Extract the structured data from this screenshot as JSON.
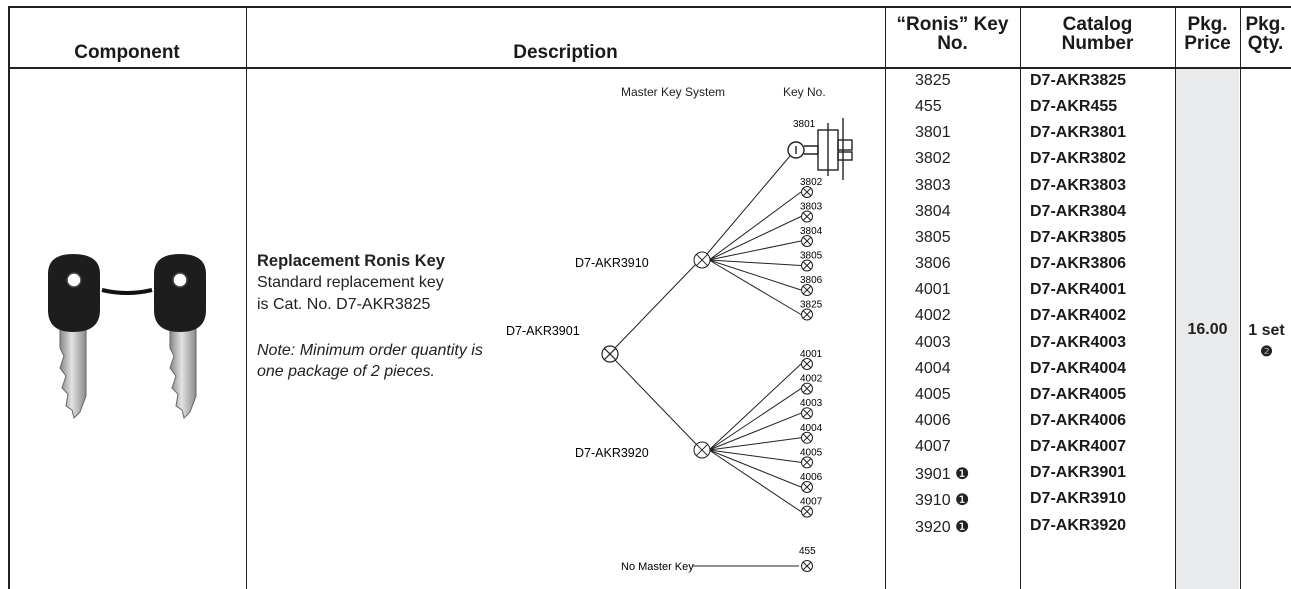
{
  "headers": {
    "component": "Component",
    "description": "Description",
    "ronis_key_line1": "“Ronis” Key",
    "ronis_key_line2": "No.",
    "catalog_line1": "Catalog",
    "catalog_line2": "Number",
    "price_line1": "Pkg.",
    "price_line2": "Price",
    "qty_line1": "Pkg.",
    "qty_line2": "Qty."
  },
  "description": {
    "title": "Replacement Ronis Key",
    "line1": "Standard replacement key",
    "line2": "is Cat. No. D7-AKR3825",
    "note": "Note: Minimum order quantity is one package of 2 pieces."
  },
  "diagram": {
    "header_system": "Master Key System",
    "header_keyno": "Key No.",
    "grand_master": "D7-AKR3901",
    "master_a": "D7-AKR3910",
    "master_b": "D7-AKR3920",
    "lock_key": "3801",
    "group_a_keys": [
      "3802",
      "3803",
      "3804",
      "3805",
      "3806",
      "3825"
    ],
    "group_b_keys": [
      "4001",
      "4002",
      "4003",
      "4004",
      "4005",
      "4006",
      "4007"
    ],
    "no_master_label": "No Master Key",
    "no_master_key": "455"
  },
  "rows": [
    {
      "key": "3825",
      "catalog": "D7-AKR3825"
    },
    {
      "key": "455",
      "catalog": "D7-AKR455"
    },
    {
      "key": "3801",
      "catalog": "D7-AKR3801"
    },
    {
      "key": "3802",
      "catalog": "D7-AKR3802"
    },
    {
      "key": "3803",
      "catalog": "D7-AKR3803"
    },
    {
      "key": "3804",
      "catalog": "D7-AKR3804"
    },
    {
      "key": "3805",
      "catalog": "D7-AKR3805"
    },
    {
      "key": "3806",
      "catalog": "D7-AKR3806"
    },
    {
      "key": "4001",
      "catalog": "D7-AKR4001"
    },
    {
      "key": "4002",
      "catalog": "D7-AKR4002"
    },
    {
      "key": "4003",
      "catalog": "D7-AKR4003"
    },
    {
      "key": "4004",
      "catalog": "D7-AKR4004"
    },
    {
      "key": "4005",
      "catalog": "D7-AKR4005"
    },
    {
      "key": "4006",
      "catalog": "D7-AKR4006"
    },
    {
      "key": "4007",
      "catalog": "D7-AKR4007"
    },
    {
      "key": "3901 ❶",
      "catalog": "D7-AKR3901"
    },
    {
      "key": "3910 ❶",
      "catalog": "D7-AKR3910"
    },
    {
      "key": "3920 ❶",
      "catalog": "D7-AKR3920"
    }
  ],
  "price": "16.00",
  "qty": "1 set",
  "qty_note": "❷",
  "icons": {
    "component_image": "replacement-keys-icon",
    "lock_image": "key-lock-icon"
  }
}
